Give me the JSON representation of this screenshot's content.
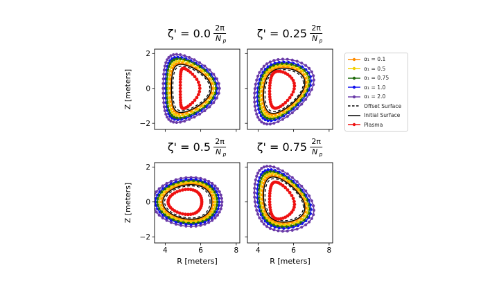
{
  "chart_data": {
    "type": "line",
    "shared": {
      "xlabel": "R [meters]",
      "ylabel": "Z [meters]",
      "xlim": [
        3.4,
        8.2
      ],
      "ylim": [
        -2.35,
        2.25
      ],
      "xticks": [
        4,
        6,
        8
      ],
      "yticks": [
        -2,
        0,
        2
      ],
      "xtick_labels": [
        "4",
        "6",
        "8"
      ],
      "ytick_labels": [
        "−2",
        "0",
        "2"
      ]
    },
    "legend": {
      "location": "right",
      "entries": [
        {
          "label": "α₁ = 0.1",
          "color": "#ff8c00",
          "style": "marker"
        },
        {
          "label": "α₁ = 0.5",
          "color": "#f2d000",
          "style": "marker"
        },
        {
          "label": "α₁ = 0.75",
          "color": "#1f6b0e",
          "style": "marker"
        },
        {
          "label": "α₁ = 1.0",
          "color": "#1010ee",
          "style": "marker"
        },
        {
          "label": "α₁ = 2.0",
          "color": "#6a3aa8",
          "style": "marker"
        },
        {
          "label": "Offset Surface",
          "color": "#000000",
          "style": "dashed"
        },
        {
          "label": "Initial Surface",
          "color": "#000000",
          "style": "solid"
        },
        {
          "label": "Plasma",
          "color": "#ee1111",
          "style": "marker"
        }
      ]
    },
    "panels": [
      {
        "id": "p0",
        "title_prefix": "ζ' = 0.0",
        "frac_num": "2π",
        "frac_den": "N",
        "frac_sub": "p",
        "show_xlabel": false,
        "show_ylabel": true,
        "shape": {
          "R0": 5.55,
          "b": 1.3,
          "a": 1.6,
          "tri": 0.55,
          "ky": 0.0,
          "sk": 0.0,
          "dx": -0.08
        },
        "plasma": {
          "R0": 5.45,
          "b": 0.55,
          "a": 1.15,
          "tri": 0.75,
          "ky": 0.0,
          "sk": 0.0,
          "dx": -0.05
        },
        "series": [
          {
            "name": "α₁ = 2.0",
            "color": "#6a3aa8",
            "scale": 1.22,
            "points": 44
          },
          {
            "name": "α₁ = 1.0",
            "color": "#1010ee",
            "scale": 1.12,
            "points": 40
          },
          {
            "name": "α₁ = 0.75",
            "color": "#1f6b0e",
            "scale": 1.06,
            "points": 38
          },
          {
            "name": "α₁ = 0.5",
            "color": "#f2d000",
            "scale": 0.98,
            "points": 36
          },
          {
            "name": "α₁ = 0.1",
            "color": "#ff8c00",
            "scale": 0.9,
            "points": 34
          }
        ]
      },
      {
        "id": "p1",
        "title_prefix": "ζ' = 0.25",
        "frac_num": "2π",
        "frac_den": "N",
        "frac_sub": "p",
        "show_xlabel": false,
        "show_ylabel": false,
        "shape": {
          "R0": 5.55,
          "b": 1.35,
          "a": 1.45,
          "tri": 0.35,
          "ky": 0.0,
          "sk": 0.55,
          "dx": -0.08
        },
        "plasma": {
          "R0": 5.4,
          "b": 0.7,
          "a": 1.05,
          "tri": 0.45,
          "ky": 0.0,
          "sk": 0.4,
          "dx": -0.05
        },
        "series": [
          {
            "name": "α₁ = 2.0",
            "color": "#6a3aa8",
            "scale": 1.24,
            "points": 44
          },
          {
            "name": "α₁ = 1.0",
            "color": "#1010ee",
            "scale": 1.12,
            "points": 40
          },
          {
            "name": "α₁ = 0.75",
            "color": "#1f6b0e",
            "scale": 1.05,
            "points": 38
          },
          {
            "name": "α₁ = 0.5",
            "color": "#f2d000",
            "scale": 0.98,
            "points": 36
          },
          {
            "name": "α₁ = 0.1",
            "color": "#ff8c00",
            "scale": 0.9,
            "points": 34
          }
        ]
      },
      {
        "id": "p2",
        "title_prefix": "ζ' = 0.5",
        "frac_num": "2π",
        "frac_den": "N",
        "frac_sub": "p",
        "show_xlabel": true,
        "show_ylabel": true,
        "shape": {
          "R0": 5.35,
          "b": 1.6,
          "a": 1.15,
          "tri": 0.0,
          "ky": 0.35,
          "sk": 0.0,
          "dx": 0.0
        },
        "plasma": {
          "R0": 5.2,
          "b": 0.95,
          "a": 0.72,
          "tri": 0.0,
          "ky": 0.3,
          "sk": 0.0,
          "dx": 0.0
        },
        "series": [
          {
            "name": "α₁ = 2.0",
            "color": "#6a3aa8",
            "scale": 1.22,
            "points": 44
          },
          {
            "name": "α₁ = 1.0",
            "color": "#1010ee",
            "scale": 1.12,
            "points": 40
          },
          {
            "name": "α₁ = 0.75",
            "color": "#1f6b0e",
            "scale": 1.05,
            "points": 38
          },
          {
            "name": "α₁ = 0.5",
            "color": "#f2d000",
            "scale": 0.98,
            "points": 36
          },
          {
            "name": "α₁ = 0.1",
            "color": "#ff8c00",
            "scale": 0.9,
            "points": 34
          }
        ]
      },
      {
        "id": "p3",
        "title_prefix": "ζ' = 0.75",
        "frac_num": "2π",
        "frac_den": "N",
        "frac_sub": "p",
        "show_xlabel": true,
        "show_ylabel": false,
        "shape": {
          "R0": 5.55,
          "b": 1.35,
          "a": 1.45,
          "tri": 0.35,
          "ky": 0.0,
          "sk": -0.55,
          "dx": -0.08
        },
        "plasma": {
          "R0": 5.4,
          "b": 0.7,
          "a": 1.05,
          "tri": 0.45,
          "ky": 0.0,
          "sk": -0.4,
          "dx": -0.05
        },
        "series": [
          {
            "name": "α₁ = 2.0",
            "color": "#6a3aa8",
            "scale": 1.24,
            "points": 44
          },
          {
            "name": "α₁ = 1.0",
            "color": "#1010ee",
            "scale": 1.12,
            "points": 40
          },
          {
            "name": "α₁ = 0.75",
            "color": "#1f6b0e",
            "scale": 1.05,
            "points": 38
          },
          {
            "name": "α₁ = 0.5",
            "color": "#f2d000",
            "scale": 0.98,
            "points": 36
          },
          {
            "name": "α₁ = 0.1",
            "color": "#ff8c00",
            "scale": 0.9,
            "points": 34
          }
        ]
      }
    ]
  }
}
